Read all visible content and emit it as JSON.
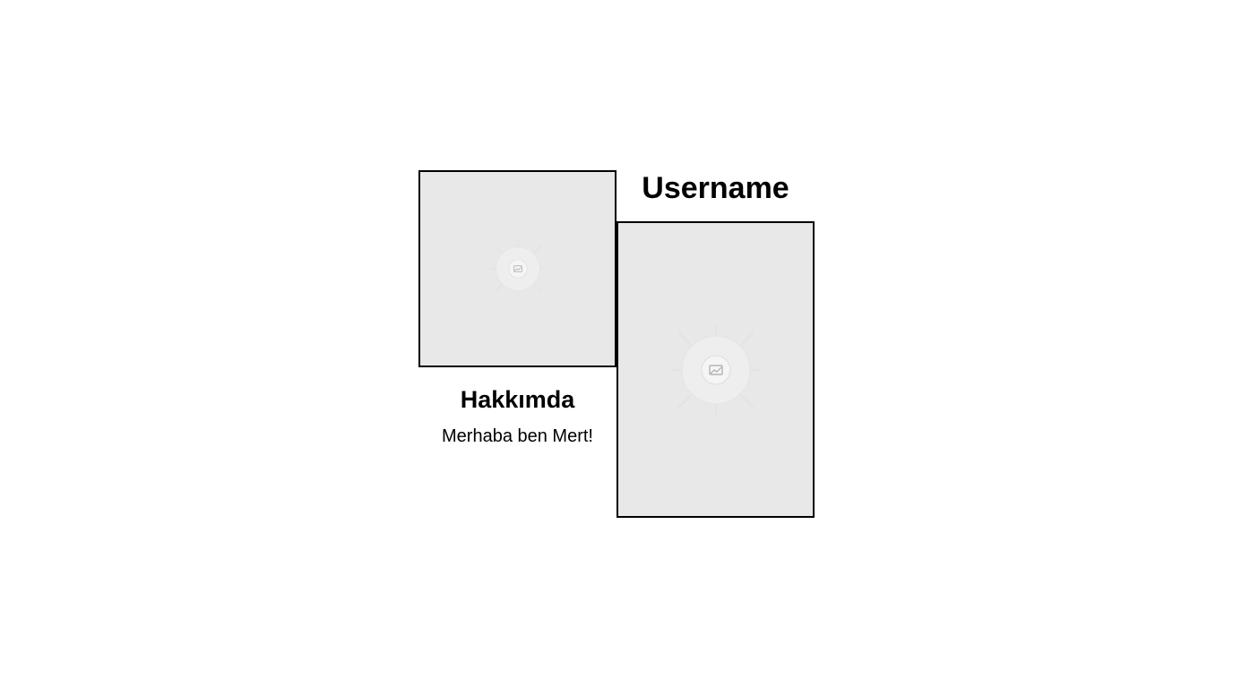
{
  "profile": {
    "username": "Username",
    "avatar_icon": "image-placeholder-icon",
    "photo_icon": "image-placeholder-icon"
  },
  "about": {
    "title": "Hakkımda",
    "text": "Merhaba ben Mert!"
  }
}
